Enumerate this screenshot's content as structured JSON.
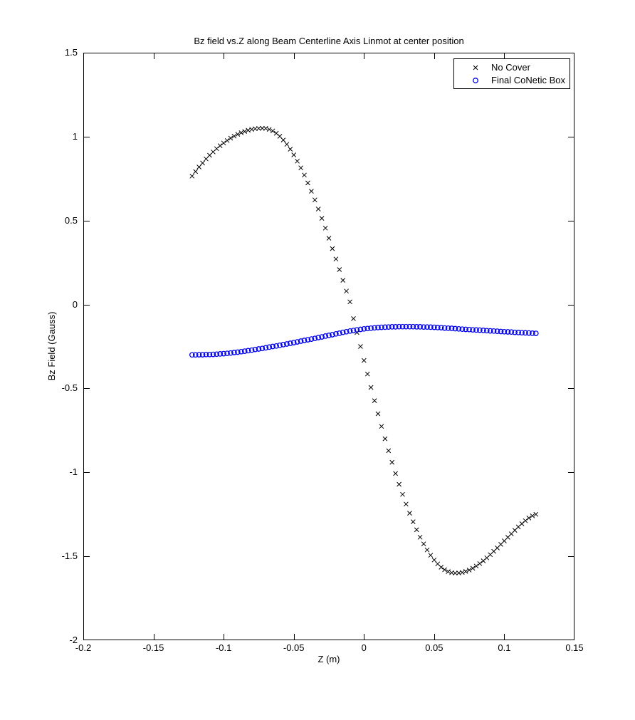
{
  "figure_background": "#ffffff",
  "axes": {
    "border_color": "#000000",
    "tick_color": "#000000",
    "text_color": "#000000"
  },
  "chart_data": {
    "type": "scatter",
    "title": "Bz field vs.Z along Beam Centerline Axis Linmot at center position",
    "xlabel": "Z (m)",
    "ylabel": "Bz Field (Gauss)",
    "xlim": [
      -0.2,
      0.15
    ],
    "ylim": [
      -2,
      1.5
    ],
    "xticks": [
      -0.2,
      -0.15,
      -0.1,
      -0.05,
      0,
      0.05,
      0.1,
      0.15
    ],
    "xtick_labels": [
      "-0.2",
      "-0.15",
      "-0.1",
      "-0.05",
      "0",
      "0.05",
      "0.1",
      "0.15"
    ],
    "yticks": [
      1.5,
      1,
      0.5,
      0,
      -0.5,
      -1,
      -1.5,
      -2
    ],
    "ytick_labels": [
      "1.5",
      "1",
      "0.5",
      "0",
      "-0.5",
      "-1",
      "-1.5",
      "-2"
    ],
    "grid": false,
    "legend": {
      "position": "top-right",
      "border": true
    },
    "series": [
      {
        "name": "No Cover",
        "marker": "x",
        "color": "#000000",
        "points": [
          [
            -0.1225,
            0.765
          ],
          [
            -0.12,
            0.792
          ],
          [
            -0.1175,
            0.819
          ],
          [
            -0.115,
            0.843
          ],
          [
            -0.1125,
            0.867
          ],
          [
            -0.11,
            0.889
          ],
          [
            -0.1075,
            0.909
          ],
          [
            -0.105,
            0.928
          ],
          [
            -0.1025,
            0.946
          ],
          [
            -0.1,
            0.962
          ],
          [
            -0.0975,
            0.977
          ],
          [
            -0.095,
            0.991
          ],
          [
            -0.0925,
            1.003
          ],
          [
            -0.09,
            1.014
          ],
          [
            -0.0875,
            1.023
          ],
          [
            -0.085,
            1.031
          ],
          [
            -0.0825,
            1.038
          ],
          [
            -0.08,
            1.043
          ],
          [
            -0.0775,
            1.047
          ],
          [
            -0.075,
            1.049
          ],
          [
            -0.0725,
            1.05
          ],
          [
            -0.07,
            1.049
          ],
          [
            -0.0675,
            1.043
          ],
          [
            -0.065,
            1.034
          ],
          [
            -0.0625,
            1.02
          ],
          [
            -0.06,
            1.002
          ],
          [
            -0.0575,
            0.98
          ],
          [
            -0.055,
            0.954
          ],
          [
            -0.0525,
            0.925
          ],
          [
            -0.05,
            0.891
          ],
          [
            -0.0475,
            0.854
          ],
          [
            -0.045,
            0.814
          ],
          [
            -0.0425,
            0.771
          ],
          [
            -0.04,
            0.724
          ],
          [
            -0.0375,
            0.675
          ],
          [
            -0.035,
            0.623
          ],
          [
            -0.0325,
            0.569
          ],
          [
            -0.03,
            0.513
          ],
          [
            -0.0275,
            0.455
          ],
          [
            -0.025,
            0.395
          ],
          [
            -0.0225,
            0.333
          ],
          [
            -0.02,
            0.271
          ],
          [
            -0.0175,
            0.208
          ],
          [
            -0.015,
            0.144
          ],
          [
            -0.0125,
            0.08
          ],
          [
            -0.01,
            0.016
          ],
          [
            -0.0075,
            -0.084
          ],
          [
            -0.005,
            -0.167
          ],
          [
            -0.0025,
            -0.25
          ],
          [
            0,
            -0.333
          ],
          [
            0.0025,
            -0.414
          ],
          [
            0.005,
            -0.494
          ],
          [
            0.0075,
            -0.573
          ],
          [
            0.01,
            -0.651
          ],
          [
            0.0125,
            -0.726
          ],
          [
            0.015,
            -0.8
          ],
          [
            0.0175,
            -0.871
          ],
          [
            0.02,
            -0.94
          ],
          [
            0.0225,
            -1.007
          ],
          [
            0.025,
            -1.071
          ],
          [
            0.0275,
            -1.131
          ],
          [
            0.03,
            -1.189
          ],
          [
            0.0325,
            -1.243
          ],
          [
            0.035,
            -1.294
          ],
          [
            0.0375,
            -1.342
          ],
          [
            0.04,
            -1.386
          ],
          [
            0.0425,
            -1.426
          ],
          [
            0.045,
            -1.462
          ],
          [
            0.0475,
            -1.494
          ],
          [
            0.05,
            -1.522
          ],
          [
            0.0525,
            -1.545
          ],
          [
            0.055,
            -1.565
          ],
          [
            0.0575,
            -1.58
          ],
          [
            0.06,
            -1.591
          ],
          [
            0.0625,
            -1.598
          ],
          [
            0.065,
            -1.6
          ],
          [
            0.0675,
            -1.599
          ],
          [
            0.07,
            -1.596
          ],
          [
            0.0725,
            -1.59
          ],
          [
            0.075,
            -1.582
          ],
          [
            0.0775,
            -1.571
          ],
          [
            0.08,
            -1.558
          ],
          [
            0.0825,
            -1.543
          ],
          [
            0.085,
            -1.527
          ],
          [
            0.0875,
            -1.509
          ],
          [
            0.09,
            -1.49
          ],
          [
            0.0925,
            -1.47
          ],
          [
            0.095,
            -1.45
          ],
          [
            0.0975,
            -1.429
          ],
          [
            0.1,
            -1.408
          ],
          [
            0.1025,
            -1.387
          ],
          [
            0.105,
            -1.366
          ],
          [
            0.1075,
            -1.345
          ],
          [
            0.11,
            -1.325
          ],
          [
            0.1125,
            -1.306
          ],
          [
            0.115,
            -1.288
          ],
          [
            0.1175,
            -1.272
          ],
          [
            0.12,
            -1.259
          ],
          [
            0.1225,
            -1.25
          ]
        ]
      },
      {
        "name": "Final CoNetic Box",
        "marker": "o",
        "color": "#0000ee",
        "points": [
          [
            -0.1225,
            -0.3
          ],
          [
            -0.12,
            -0.3
          ],
          [
            -0.1175,
            -0.299
          ],
          [
            -0.115,
            -0.299
          ],
          [
            -0.1125,
            -0.298
          ],
          [
            -0.11,
            -0.298
          ],
          [
            -0.1075,
            -0.297
          ],
          [
            -0.105,
            -0.296
          ],
          [
            -0.1025,
            -0.294
          ],
          [
            -0.1,
            -0.293
          ],
          [
            -0.0975,
            -0.291
          ],
          [
            -0.095,
            -0.289
          ],
          [
            -0.0925,
            -0.286
          ],
          [
            -0.09,
            -0.284
          ],
          [
            -0.0875,
            -0.281
          ],
          [
            -0.085,
            -0.278
          ],
          [
            -0.0825,
            -0.275
          ],
          [
            -0.08,
            -0.272
          ],
          [
            -0.0775,
            -0.268
          ],
          [
            -0.075,
            -0.265
          ],
          [
            -0.0725,
            -0.262
          ],
          [
            -0.07,
            -0.258
          ],
          [
            -0.0675,
            -0.254
          ],
          [
            -0.065,
            -0.25
          ],
          [
            -0.0625,
            -0.247
          ],
          [
            -0.06,
            -0.243
          ],
          [
            -0.0575,
            -0.239
          ],
          [
            -0.055,
            -0.235
          ],
          [
            -0.0525,
            -0.231
          ],
          [
            -0.05,
            -0.227
          ],
          [
            -0.0475,
            -0.223
          ],
          [
            -0.045,
            -0.218
          ],
          [
            -0.0425,
            -0.214
          ],
          [
            -0.04,
            -0.21
          ],
          [
            -0.0375,
            -0.206
          ],
          [
            -0.035,
            -0.202
          ],
          [
            -0.0325,
            -0.197
          ],
          [
            -0.03,
            -0.193
          ],
          [
            -0.0275,
            -0.188
          ],
          [
            -0.025,
            -0.184
          ],
          [
            -0.0225,
            -0.18
          ],
          [
            -0.02,
            -0.175
          ],
          [
            -0.0175,
            -0.171
          ],
          [
            -0.015,
            -0.166
          ],
          [
            -0.0125,
            -0.162
          ],
          [
            -0.01,
            -0.158
          ],
          [
            -0.0075,
            -0.155
          ],
          [
            -0.005,
            -0.151
          ],
          [
            -0.0025,
            -0.148
          ],
          [
            0,
            -0.145
          ],
          [
            0.0025,
            -0.143
          ],
          [
            0.005,
            -0.141
          ],
          [
            0.0075,
            -0.139
          ],
          [
            0.01,
            -0.137
          ],
          [
            0.0125,
            -0.136
          ],
          [
            0.015,
            -0.135
          ],
          [
            0.0175,
            -0.134
          ],
          [
            0.02,
            -0.133
          ],
          [
            0.0225,
            -0.133
          ],
          [
            0.025,
            -0.132
          ],
          [
            0.0275,
            -0.132
          ],
          [
            0.03,
            -0.132
          ],
          [
            0.0325,
            -0.132
          ],
          [
            0.035,
            -0.132
          ],
          [
            0.0375,
            -0.133
          ],
          [
            0.04,
            -0.133
          ],
          [
            0.0425,
            -0.134
          ],
          [
            0.045,
            -0.134
          ],
          [
            0.0475,
            -0.135
          ],
          [
            0.05,
            -0.136
          ],
          [
            0.0525,
            -0.137
          ],
          [
            0.055,
            -0.138
          ],
          [
            0.0575,
            -0.14
          ],
          [
            0.06,
            -0.141
          ],
          [
            0.0625,
            -0.142
          ],
          [
            0.065,
            -0.144
          ],
          [
            0.0675,
            -0.145
          ],
          [
            0.07,
            -0.147
          ],
          [
            0.0725,
            -0.148
          ],
          [
            0.075,
            -0.149
          ],
          [
            0.0775,
            -0.151
          ],
          [
            0.08,
            -0.152
          ],
          [
            0.0825,
            -0.153
          ],
          [
            0.085,
            -0.154
          ],
          [
            0.0875,
            -0.156
          ],
          [
            0.09,
            -0.157
          ],
          [
            0.0925,
            -0.158
          ],
          [
            0.095,
            -0.159
          ],
          [
            0.0975,
            -0.161
          ],
          [
            0.1,
            -0.162
          ],
          [
            0.1025,
            -0.163
          ],
          [
            0.105,
            -0.164
          ],
          [
            0.1075,
            -0.166
          ],
          [
            0.11,
            -0.167
          ],
          [
            0.1125,
            -0.168
          ],
          [
            0.115,
            -0.169
          ],
          [
            0.1175,
            -0.17
          ],
          [
            0.12,
            -0.171
          ],
          [
            0.1225,
            -0.172
          ]
        ]
      }
    ]
  }
}
